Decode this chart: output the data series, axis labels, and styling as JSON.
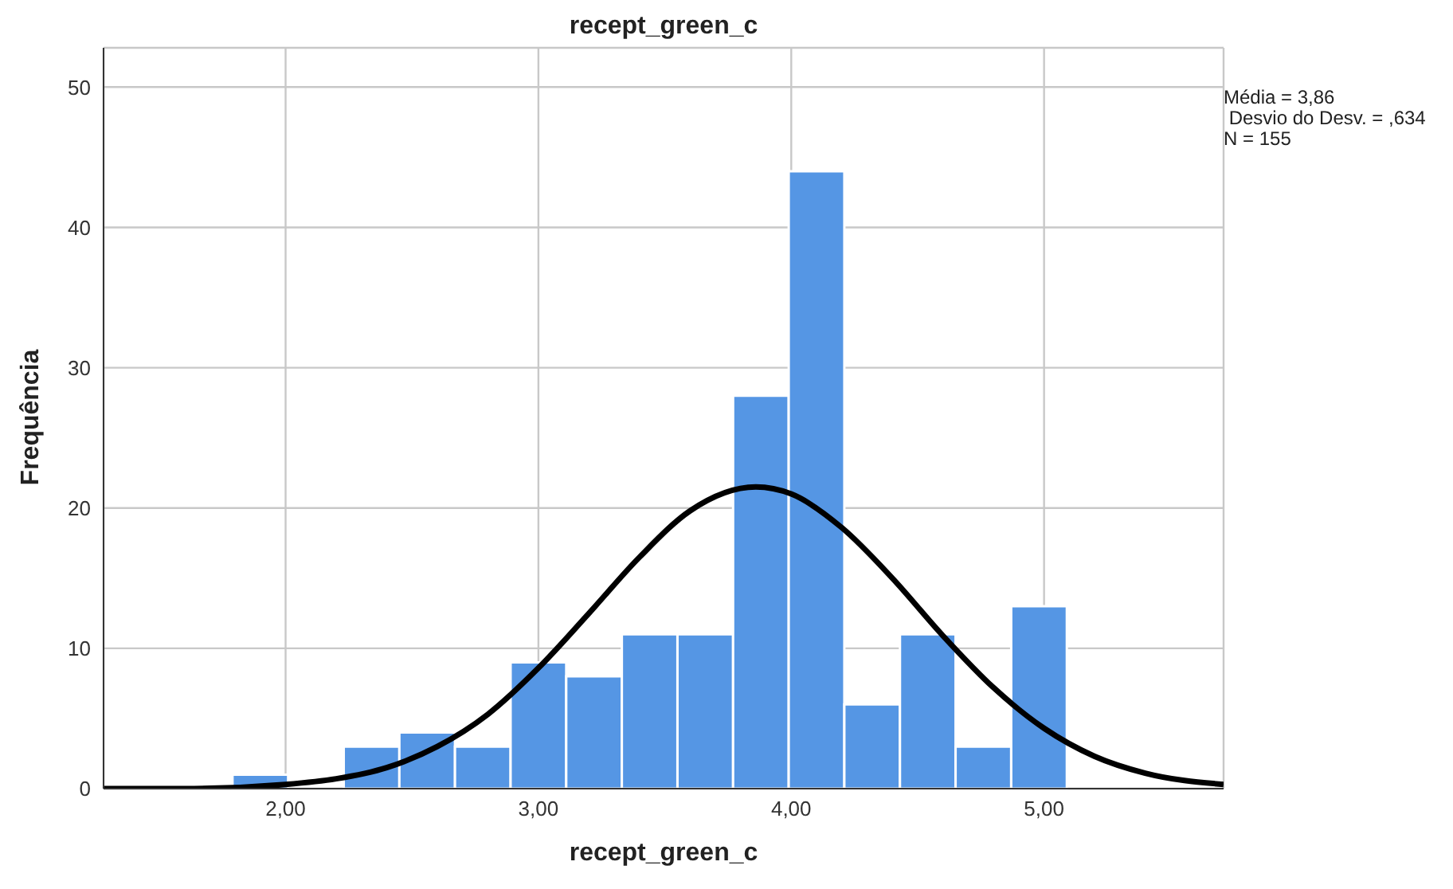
{
  "chart_data": {
    "type": "histogram",
    "title": "recept_green_c",
    "xlabel": "recept_green_c",
    "ylabel": "Frequência",
    "bins": [
      1.79,
      2.01,
      2.23,
      2.45,
      2.67,
      2.89,
      3.11,
      3.33,
      3.55,
      3.77,
      3.99,
      4.21,
      4.43,
      4.65,
      4.87,
      5.09
    ],
    "values": [
      1,
      0,
      3,
      4,
      3,
      9,
      8,
      11,
      11,
      28,
      44,
      6,
      11,
      3,
      13
    ],
    "color": "#5596e4",
    "series": [
      {
        "type": "line",
        "color": "#000000",
        "x": [
          1.28,
          1.6,
          2.0,
          2.2,
          2.4,
          2.6,
          2.8,
          3.0,
          3.2,
          3.4,
          3.6,
          3.86,
          4.0,
          4.2,
          4.4,
          4.6,
          4.8,
          5.0,
          5.2,
          5.4,
          5.71
        ],
        "values": [
          0.0,
          0.0,
          0.3,
          0.7,
          1.5,
          3.0,
          5.3,
          8.6,
          12.5,
          16.5,
          19.8,
          21.5,
          21.0,
          18.6,
          15.0,
          10.9,
          7.2,
          4.3,
          2.3,
          1.1,
          0.3
        ]
      }
    ],
    "xlim": [
      1.28,
      5.71
    ],
    "xticks": [
      {
        "value": 2,
        "label": "2,00"
      },
      {
        "value": 3,
        "label": "3,00"
      },
      {
        "value": 4,
        "label": "4,00"
      },
      {
        "value": 5,
        "label": "5,00"
      }
    ],
    "ylim": [
      0,
      52.8
    ],
    "yticks": [
      0,
      10,
      20,
      30,
      40,
      50
    ],
    "grid": true,
    "marker": "none",
    "line_style": "solid",
    "annotations": [
      "Média = 3,86",
      " Desvio do Desv. = ,634",
      "N = 155"
    ]
  }
}
